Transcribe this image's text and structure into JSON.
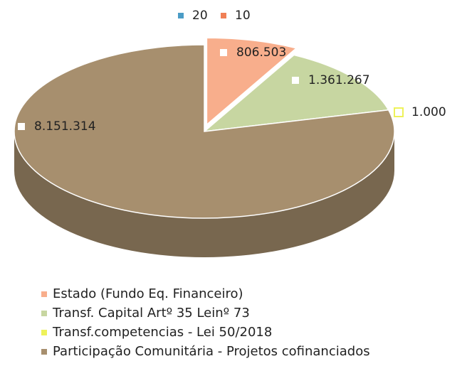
{
  "chart_data": {
    "type": "pie3d",
    "top_legend": [
      {
        "name": "20",
        "color": "#4b9cc6"
      },
      {
        "name": "10",
        "color": "#f07f55"
      }
    ],
    "categories": [
      "Estado (Fundo Eq. Financeiro)",
      "Transf. Capital Artº 35 Leinº 73",
      "Transf.competencias - Lei 50/2018",
      "Participação Comunitária - Projetos cofinanciados"
    ],
    "values": [
      806503,
      1361267,
      1000,
      8151314
    ],
    "value_labels": [
      "806.503",
      "1.361.267",
      "1.000",
      "8.151.314"
    ],
    "colors": [
      "#f8ae8c",
      "#c7d6a1",
      "#eef25a",
      "#a78f6e"
    ],
    "legend": "bottom"
  }
}
